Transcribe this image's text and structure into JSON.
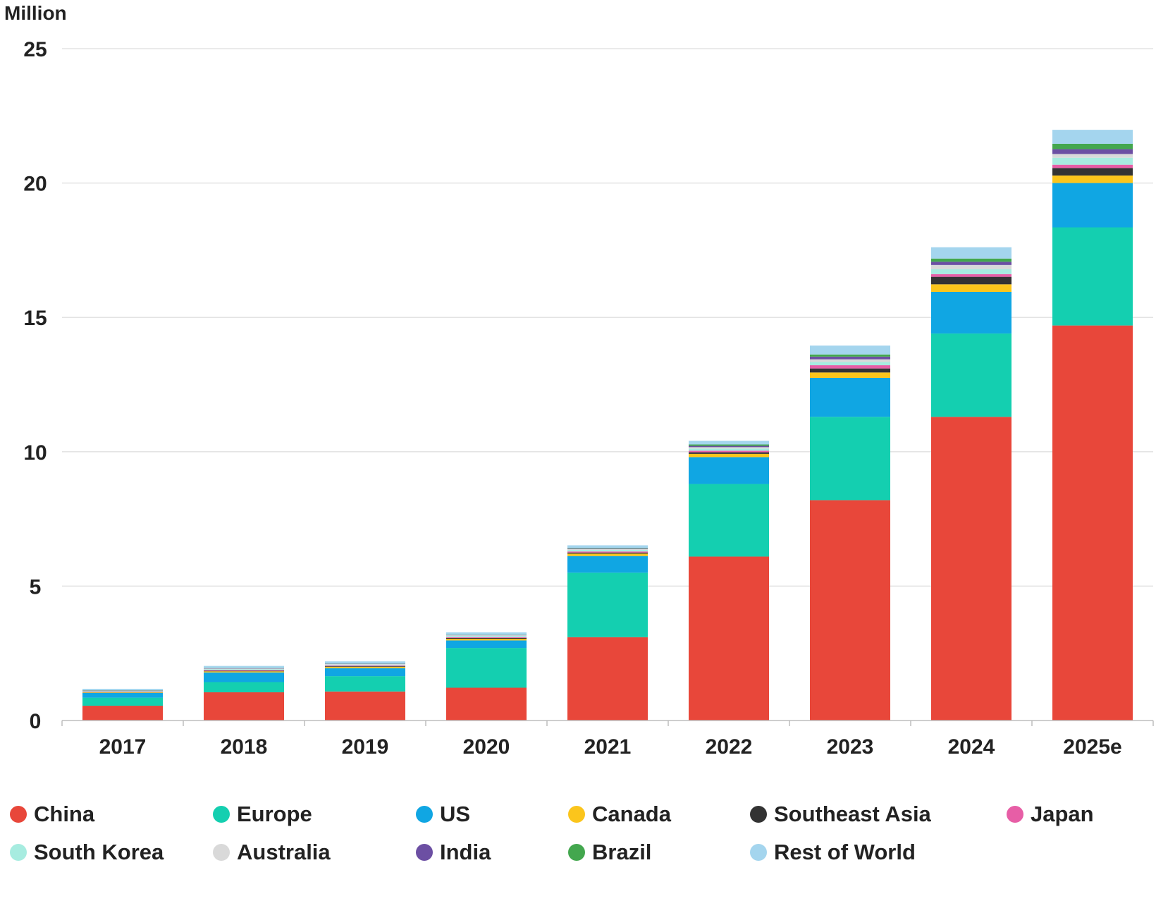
{
  "chart_data": {
    "type": "bar",
    "stacked": true,
    "y_unit_label": "Million",
    "ylim": [
      0,
      25
    ],
    "yticks": [
      "0",
      "5",
      "10",
      "15",
      "20",
      "25"
    ],
    "grid": true,
    "legend_position": "bottom",
    "categories": [
      "2017",
      "2018",
      "2019",
      "2020",
      "2021",
      "2022",
      "2023",
      "2024",
      "2025e"
    ],
    "series": [
      {
        "name": "China",
        "color": "#e8473a",
        "values": [
          0.55,
          1.05,
          1.08,
          1.22,
          3.1,
          6.1,
          8.2,
          11.3,
          14.7
        ]
      },
      {
        "name": "Europe",
        "color": "#14cfb0",
        "values": [
          0.3,
          0.38,
          0.57,
          1.48,
          2.4,
          2.7,
          3.1,
          3.1,
          3.65
        ]
      },
      {
        "name": "US",
        "color": "#10a6e3",
        "values": [
          0.18,
          0.36,
          0.3,
          0.28,
          0.62,
          1.0,
          1.45,
          1.55,
          1.65
        ]
      },
      {
        "name": "Canada",
        "color": "#fbc51c",
        "values": [
          0.02,
          0.04,
          0.05,
          0.06,
          0.09,
          0.12,
          0.2,
          0.28,
          0.28
        ]
      },
      {
        "name": "Southeast Asia",
        "color": "#333333",
        "values": [
          0.01,
          0.02,
          0.02,
          0.03,
          0.04,
          0.06,
          0.15,
          0.28,
          0.28
        ]
      },
      {
        "name": "Japan",
        "color": "#e75ea6",
        "values": [
          0.02,
          0.03,
          0.03,
          0.03,
          0.04,
          0.06,
          0.12,
          0.1,
          0.12
        ]
      },
      {
        "name": "South Korea",
        "color": "#a7ece0",
        "values": [
          0.02,
          0.03,
          0.03,
          0.05,
          0.06,
          0.08,
          0.12,
          0.18,
          0.26
        ]
      },
      {
        "name": "Australia",
        "color": "#d9d9d9",
        "values": [
          0.01,
          0.02,
          0.02,
          0.02,
          0.03,
          0.05,
          0.1,
          0.16,
          0.14
        ]
      },
      {
        "name": "India",
        "color": "#6c4fa3",
        "values": [
          0.01,
          0.01,
          0.01,
          0.01,
          0.02,
          0.05,
          0.1,
          0.12,
          0.18
        ]
      },
      {
        "name": "Brazil",
        "color": "#43a74e",
        "values": [
          0.01,
          0.01,
          0.01,
          0.01,
          0.02,
          0.05,
          0.08,
          0.12,
          0.2
        ]
      },
      {
        "name": "Rest of World",
        "color": "#a4d5ee",
        "values": [
          0.05,
          0.08,
          0.08,
          0.09,
          0.1,
          0.14,
          0.33,
          0.42,
          0.52
        ]
      }
    ]
  }
}
